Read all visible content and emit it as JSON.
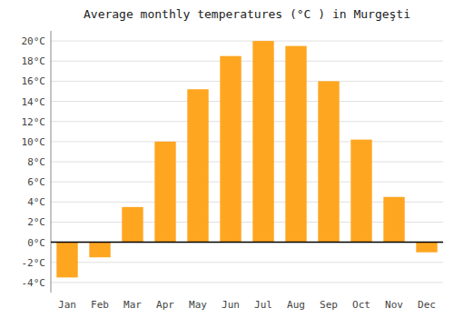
{
  "chart_data": {
    "type": "bar",
    "title": "Average monthly temperatures (°C ) in Murgeşti",
    "categories": [
      "Jan",
      "Feb",
      "Mar",
      "Apr",
      "May",
      "Jun",
      "Jul",
      "Aug",
      "Sep",
      "Oct",
      "Nov",
      "Dec"
    ],
    "values": [
      -3.5,
      -1.5,
      3.5,
      10.0,
      15.2,
      18.5,
      20.0,
      19.5,
      16.0,
      10.2,
      4.5,
      -1.0
    ],
    "color": "#FFA620",
    "ylim": [
      -5,
      21
    ],
    "yticks": [
      {
        "value": -4,
        "label": "-4°C"
      },
      {
        "value": -2,
        "label": "-2°C"
      },
      {
        "value": 0,
        "label": "0°C"
      },
      {
        "value": 2,
        "label": "2°C"
      },
      {
        "value": 4,
        "label": "4°C"
      },
      {
        "value": 6,
        "label": "6°C"
      },
      {
        "value": 8,
        "label": "8°C"
      },
      {
        "value": 10,
        "label": "10°C"
      },
      {
        "value": 12,
        "label": "12°C"
      },
      {
        "value": 14,
        "label": "14°C"
      },
      {
        "value": 16,
        "label": "16°C"
      },
      {
        "value": 18,
        "label": "18°C"
      },
      {
        "value": 20,
        "label": "20°C"
      }
    ],
    "grid": true
  }
}
